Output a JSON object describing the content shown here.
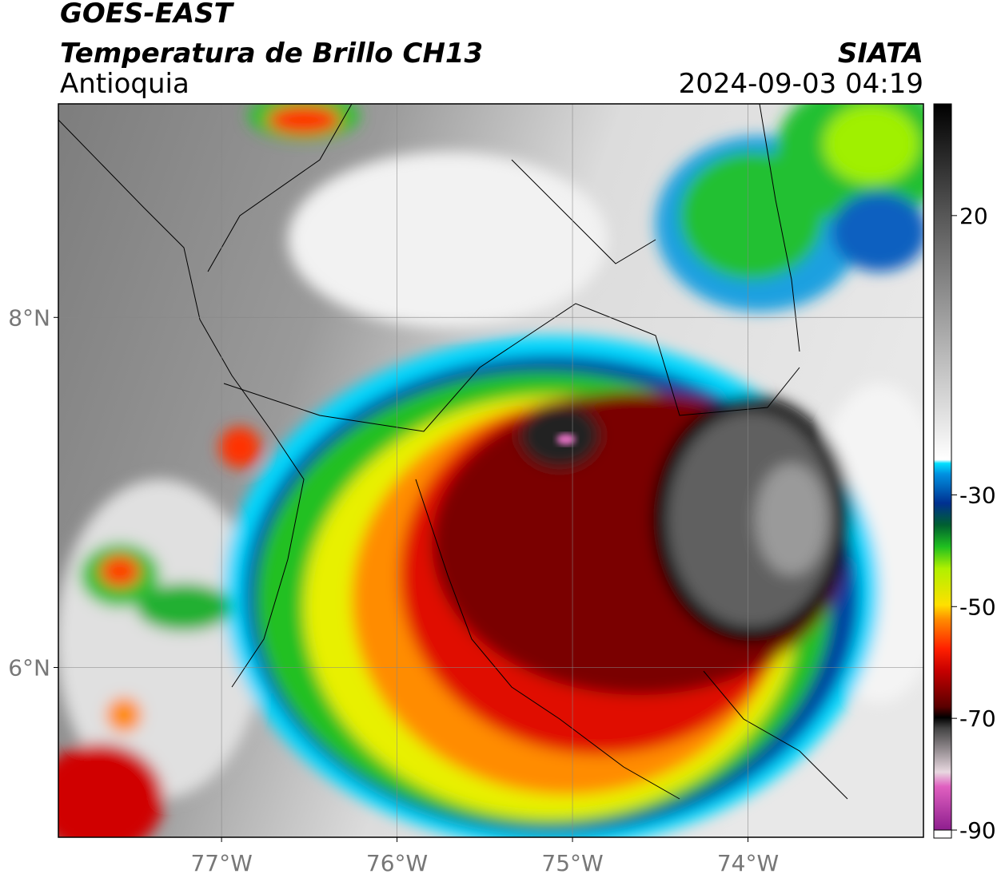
{
  "header": {
    "satellite": "GOES-EAST",
    "product": "Temperatura de Brillo CH13",
    "region": "Antioquia",
    "source": "SIATA",
    "datetime": "2024-09-03 04:19"
  },
  "map": {
    "xlim": [
      -77.93,
      -73.0
    ],
    "ylim": [
      5.03,
      9.22
    ],
    "xticks": [
      {
        "value": -77,
        "label": "77°W"
      },
      {
        "value": -76,
        "label": "76°W"
      },
      {
        "value": -75,
        "label": "75°W"
      },
      {
        "value": -74,
        "label": "74°W"
      }
    ],
    "yticks": [
      {
        "value": 8,
        "label": "8°N"
      },
      {
        "value": 6,
        "label": "6°N"
      }
    ],
    "grid": true
  },
  "colorbar": {
    "lim": [
      -90,
      40
    ],
    "ticks": [
      20,
      -30,
      -50,
      -70,
      -90
    ]
  }
}
